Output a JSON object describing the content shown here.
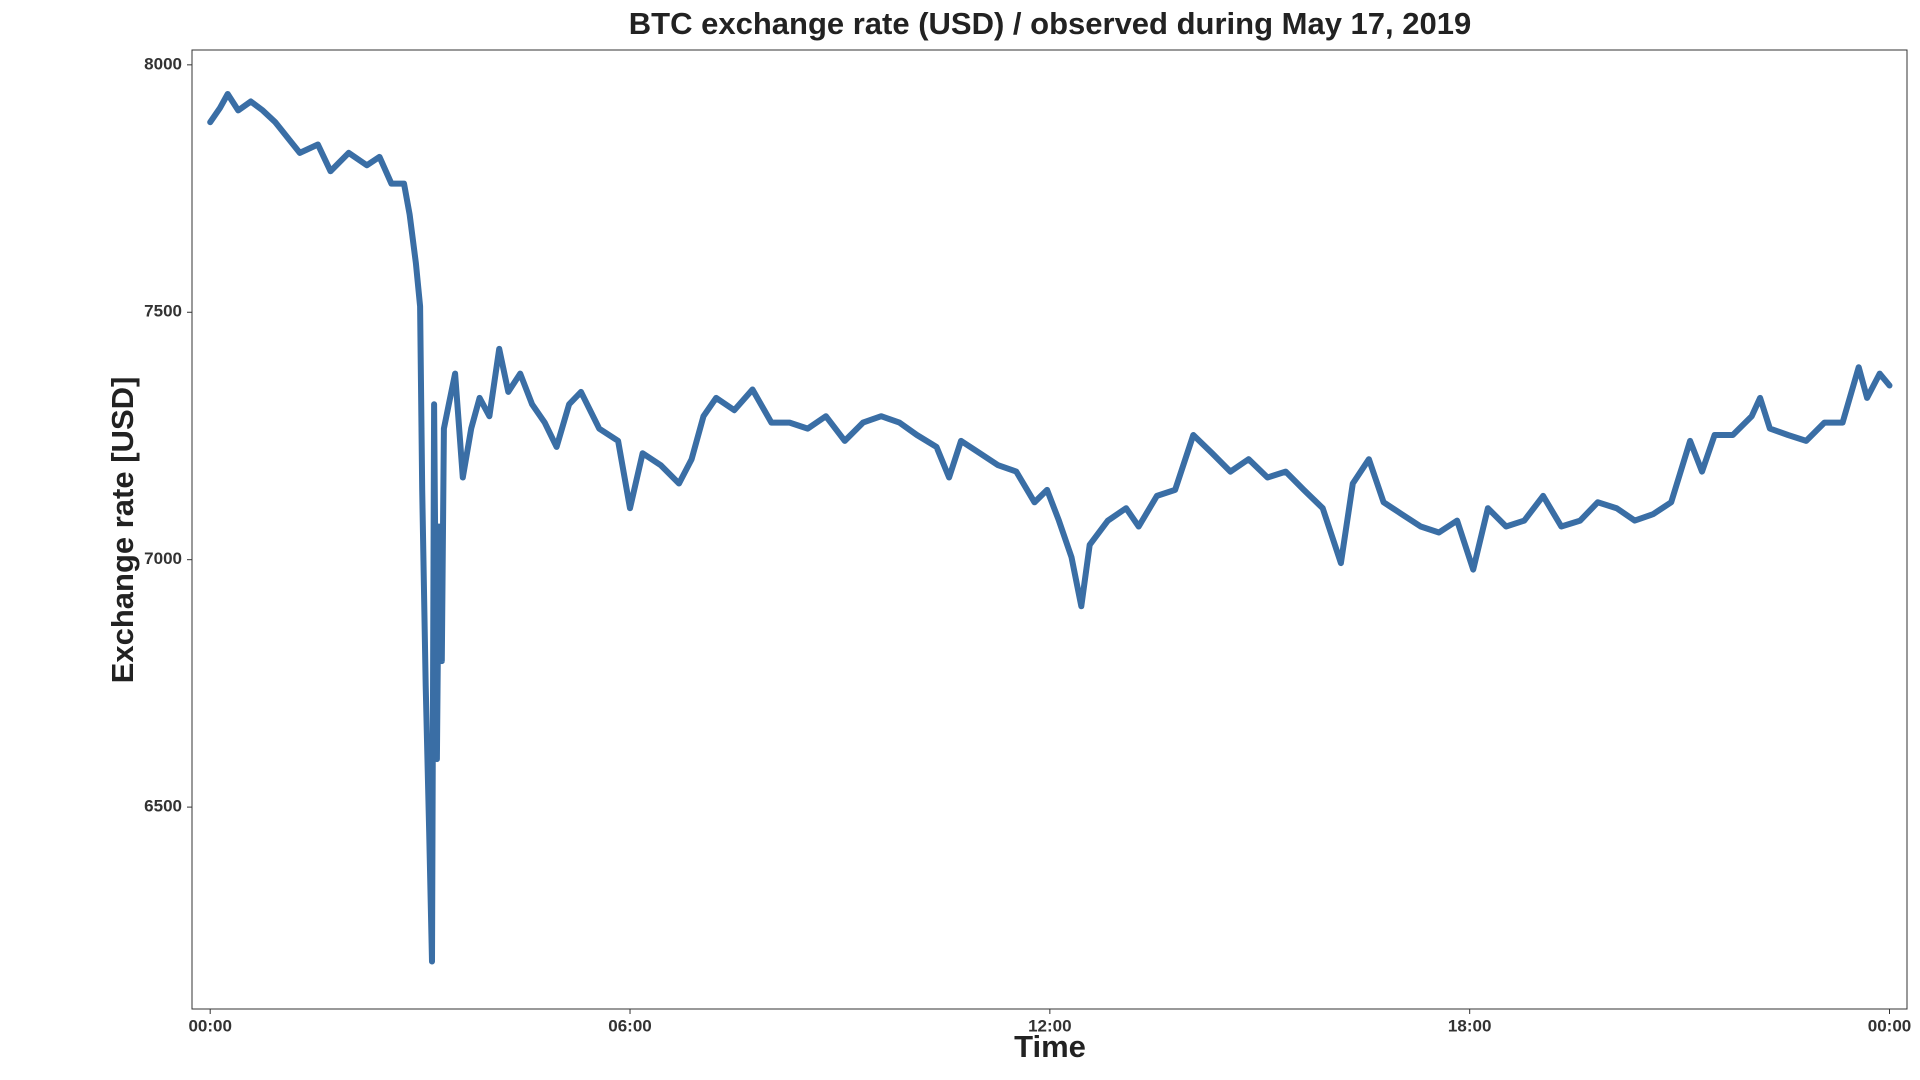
{
  "chart_data": {
    "type": "line",
    "title": "BTC exchange rate (USD) / observed during May 17, 2019",
    "x_label": "Time",
    "y_label": "Exchange rate [USD]",
    "x": [
      0,
      0.14,
      0.25,
      0.4,
      0.58,
      0.75,
      0.93,
      1.1,
      1.28,
      1.54,
      1.72,
      1.98,
      2.24,
      2.42,
      2.59,
      2.77,
      2.85,
      2.94,
      3.0,
      3.03,
      3.08,
      3.13,
      3.17,
      3.2,
      3.24,
      3.27,
      3.31,
      3.34,
      3.41,
      3.5,
      3.61,
      3.73,
      3.85,
      3.99,
      4.13,
      4.26,
      4.43,
      4.6,
      4.78,
      4.95,
      5.13,
      5.3,
      5.56,
      5.83,
      6.0,
      6.18,
      6.44,
      6.7,
      6.88,
      7.05,
      7.23,
      7.49,
      7.75,
      8.02,
      8.28,
      8.54,
      8.8,
      9.07,
      9.33,
      9.59,
      9.85,
      10.1,
      10.38,
      10.56,
      10.73,
      11.0,
      11.26,
      11.52,
      11.78,
      11.96,
      12.13,
      12.31,
      12.45,
      12.57,
      12.83,
      13.09,
      13.27,
      13.53,
      13.79,
      14.05,
      14.32,
      14.58,
      14.84,
      15.11,
      15.37,
      15.63,
      15.9,
      16.16,
      16.33,
      16.56,
      16.77,
      17.03,
      17.3,
      17.56,
      17.82,
      18.05,
      18.26,
      18.52,
      18.78,
      19.05,
      19.31,
      19.58,
      19.83,
      20.1,
      20.36,
      20.62,
      20.88,
      21.15,
      21.32,
      21.5,
      21.76,
      22.03,
      22.15,
      22.29,
      22.55,
      22.81,
      23.07,
      23.33,
      23.56,
      23.68,
      23.86,
      24.0
    ],
    "series": [
      {
        "name": "BTC",
        "color": "#3a6ea5",
        "values": [
          7884,
          7913,
          7941,
          7908,
          7926,
          7908,
          7884,
          7854,
          7822,
          7839,
          7785,
          7822,
          7797,
          7814,
          7760,
          7760,
          7698,
          7599,
          7512,
          7141,
          6745,
          6448,
          6188,
          7314,
          6597,
          7067,
          6795,
          7265,
          7314,
          7376,
          7166,
          7265,
          7327,
          7290,
          7426,
          7339,
          7376,
          7314,
          7277,
          7228,
          7314,
          7339,
          7265,
          7240,
          7104,
          7215,
          7191,
          7154,
          7203,
          7290,
          7327,
          7302,
          7344,
          7277,
          7277,
          7265,
          7290,
          7240,
          7277,
          7290,
          7277,
          7252,
          7228,
          7166,
          7240,
          7215,
          7191,
          7178,
          7116,
          7141,
          7079,
          7005,
          6906,
          7030,
          7079,
          7104,
          7067,
          7129,
          7141,
          7252,
          7215,
          7178,
          7203,
          7166,
          7178,
          7141,
          7104,
          6993,
          7154,
          7203,
          7116,
          7092,
          7067,
          7055,
          7079,
          6980,
          7104,
          7067,
          7079,
          7129,
          7067,
          7079,
          7116,
          7104,
          7079,
          7092,
          7116,
          7240,
          7178,
          7252,
          7252,
          7290,
          7327,
          7265,
          7252,
          7240,
          7277,
          7277,
          7389,
          7327,
          7376,
          7352
        ]
      }
    ],
    "xlim": [
      -0.26,
      24.25
    ],
    "xticks": [
      {
        "value": 0,
        "label": "00:00"
      },
      {
        "value": 6,
        "label": "06:00"
      },
      {
        "value": 12,
        "label": "12:00"
      },
      {
        "value": 18,
        "label": "18:00"
      },
      {
        "value": 24,
        "label": "00:00"
      }
    ],
    "ylim": [
      6092,
      8030
    ],
    "yticks": [
      6500,
      7000,
      7500,
      8000
    ],
    "grid": false
  }
}
